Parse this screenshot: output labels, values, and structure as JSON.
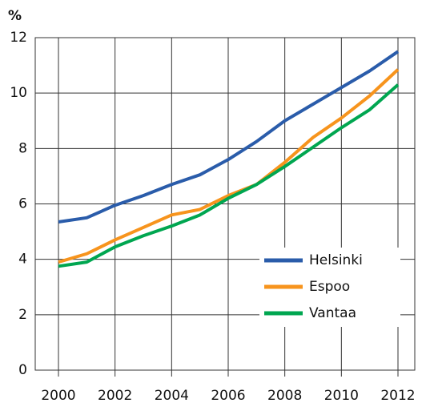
{
  "chart_data": {
    "type": "line",
    "y_label": "%",
    "x": [
      2000,
      2001,
      2002,
      2003,
      2004,
      2005,
      2006,
      2007,
      2008,
      2009,
      2010,
      2011,
      2012
    ],
    "series": [
      {
        "name": "Helsinki",
        "color": "#2a5caa",
        "values": [
          5.35,
          5.5,
          5.95,
          6.3,
          6.7,
          7.05,
          7.6,
          8.25,
          9.0,
          9.6,
          10.2,
          10.8,
          11.5
        ]
      },
      {
        "name": "Espoo",
        "color": "#f7941d",
        "values": [
          3.9,
          4.2,
          4.7,
          5.15,
          5.6,
          5.8,
          6.3,
          6.7,
          7.5,
          8.4,
          9.1,
          9.9,
          10.85
        ]
      },
      {
        "name": "Vantaa",
        "color": "#00a650",
        "values": [
          3.75,
          3.9,
          4.45,
          4.85,
          5.2,
          5.6,
          6.2,
          6.7,
          7.35,
          8.05,
          8.75,
          9.4,
          10.3
        ]
      }
    ],
    "xlim": [
      2000,
      2012
    ],
    "xticks": [
      2000,
      2002,
      2004,
      2006,
      2008,
      2010,
      2012
    ],
    "ylim": [
      0,
      12
    ],
    "yticks": [
      0,
      2,
      4,
      6,
      8,
      10,
      12
    ],
    "grid": true,
    "legend": "lower right"
  }
}
